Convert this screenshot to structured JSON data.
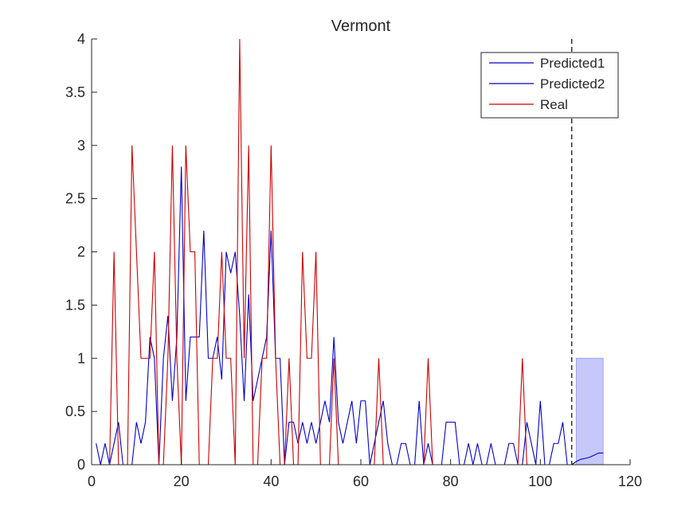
{
  "chart_data": {
    "type": "line",
    "title": "Vermont",
    "xlabel": "",
    "ylabel": "",
    "xlim": [
      0,
      120
    ],
    "ylim": [
      0,
      4
    ],
    "x_ticks": [
      0,
      20,
      40,
      60,
      80,
      100,
      120
    ],
    "y_ticks": [
      0,
      0.5,
      1,
      1.5,
      2,
      2.5,
      3,
      3.5,
      4
    ],
    "x_tick_labels": [
      "0",
      "20",
      "40",
      "60",
      "80",
      "100",
      "120"
    ],
    "y_tick_labels": [
      "0",
      "0.5",
      "1",
      "1.5",
      "2",
      "2.5",
      "3",
      "3.5",
      "4"
    ],
    "grid": false,
    "legend_position": "top-right",
    "divider_x": 107,
    "forecast_band": {
      "x_start": 108,
      "x_end": 114,
      "lower": 0,
      "upper": 1,
      "color": "#c5c8f8"
    },
    "series": [
      {
        "name": "Predicted1",
        "color": "#0000cc",
        "x": [
          1,
          2,
          3,
          4,
          5,
          6,
          7,
          8,
          9,
          10,
          11,
          12,
          13,
          14,
          15,
          16,
          17,
          18,
          19,
          20,
          21,
          22,
          23,
          24,
          25,
          26,
          27,
          28,
          29,
          30,
          31,
          32,
          33,
          34,
          35,
          36,
          37,
          38,
          39,
          40,
          41,
          42,
          43,
          44,
          45,
          46,
          47,
          48,
          49,
          50,
          51,
          52,
          53,
          54,
          55,
          56,
          57,
          58,
          59,
          60,
          61,
          62,
          63,
          64,
          65,
          66,
          67,
          68,
          69,
          70,
          71,
          72,
          73,
          74,
          75,
          76,
          77,
          78,
          79,
          80,
          81,
          82,
          83,
          84,
          85,
          86,
          87,
          88,
          89,
          90,
          91,
          92,
          93,
          94,
          95,
          96,
          97,
          98,
          99,
          100,
          101,
          102,
          103,
          104,
          105,
          106,
          107
        ],
        "y": [
          0.2,
          0,
          0.2,
          0,
          0.2,
          0.4,
          0,
          0,
          0,
          0.4,
          0.2,
          0.4,
          1.2,
          1,
          0,
          1,
          1.4,
          0.6,
          1.2,
          2.8,
          0.6,
          1.2,
          1.2,
          1.2,
          2.2,
          1,
          1,
          1.2,
          0.8,
          2,
          1.8,
          2,
          1.4,
          0.6,
          1.6,
          0.6,
          0.8,
          1,
          1.2,
          2.2,
          1,
          1,
          0,
          0.4,
          0.4,
          0.2,
          0.4,
          0.2,
          0.4,
          0.2,
          0.4,
          0.6,
          0.4,
          1.2,
          0.4,
          0.2,
          0.4,
          0.6,
          0.2,
          0.6,
          0.6,
          0,
          0.2,
          0.4,
          0.6,
          0.2,
          0,
          0,
          0.2,
          0.2,
          0,
          0,
          0.6,
          0,
          0.2,
          0,
          0,
          0,
          0.4,
          0.4,
          0.4,
          0,
          0,
          0.2,
          0,
          0.2,
          0,
          0,
          0.2,
          0,
          0,
          0,
          0.2,
          0.2,
          0,
          0,
          0.4,
          0.2,
          0,
          0.6,
          0,
          0,
          0.2,
          0.2,
          0.4,
          0,
          0
        ]
      },
      {
        "name": "Predicted2",
        "color": "#0000cc",
        "x": [
          107,
          108,
          109,
          110,
          111,
          112,
          113,
          114
        ],
        "y": [
          0,
          0.03,
          0.05,
          0.06,
          0.07,
          0.09,
          0.11,
          0.11
        ]
      },
      {
        "name": "Real",
        "color": "#cc0000",
        "x": [
          1,
          2,
          3,
          4,
          5,
          6,
          7,
          8,
          9,
          10,
          11,
          12,
          13,
          14,
          15,
          16,
          17,
          18,
          19,
          20,
          21,
          22,
          23,
          24,
          25,
          26,
          27,
          28,
          29,
          30,
          31,
          32,
          33,
          34,
          35,
          36,
          37,
          38,
          39,
          40,
          41,
          42,
          43,
          44,
          45,
          46,
          47,
          48,
          49,
          50,
          51,
          52,
          53,
          54,
          55,
          56,
          57,
          58,
          59,
          60,
          61,
          62,
          63,
          64,
          65,
          66,
          67,
          68,
          69,
          70,
          71,
          72,
          73,
          74,
          75,
          76,
          77,
          78,
          79,
          80,
          81,
          82,
          83,
          84,
          85,
          86,
          87,
          88,
          89,
          90,
          91,
          92,
          93,
          94,
          95,
          96,
          97,
          98,
          99,
          100,
          101,
          102,
          103,
          104,
          105,
          106,
          107
        ],
        "y": [
          0,
          0,
          0,
          0,
          2,
          0,
          0,
          0,
          3,
          2,
          1,
          1,
          1,
          2,
          0,
          0,
          1,
          3,
          1,
          0,
          3,
          2,
          2,
          0,
          0,
          0,
          1,
          1,
          2,
          1,
          1,
          0,
          4,
          1,
          3,
          0,
          0,
          1,
          1,
          3,
          1,
          0,
          0,
          1,
          0,
          0,
          2,
          1,
          1,
          2,
          0,
          0,
          0,
          1,
          0,
          0,
          0,
          0,
          0,
          0,
          0,
          0,
          0,
          1,
          0,
          0,
          0,
          0,
          0,
          0,
          0,
          0,
          0,
          0,
          1,
          0,
          0,
          0,
          0,
          0,
          0,
          0,
          0,
          0,
          0,
          0,
          0,
          0,
          0,
          0,
          0,
          0,
          0,
          0,
          0,
          1,
          0,
          0,
          0,
          0,
          0,
          0,
          0,
          0,
          0,
          0,
          0
        ]
      }
    ]
  }
}
